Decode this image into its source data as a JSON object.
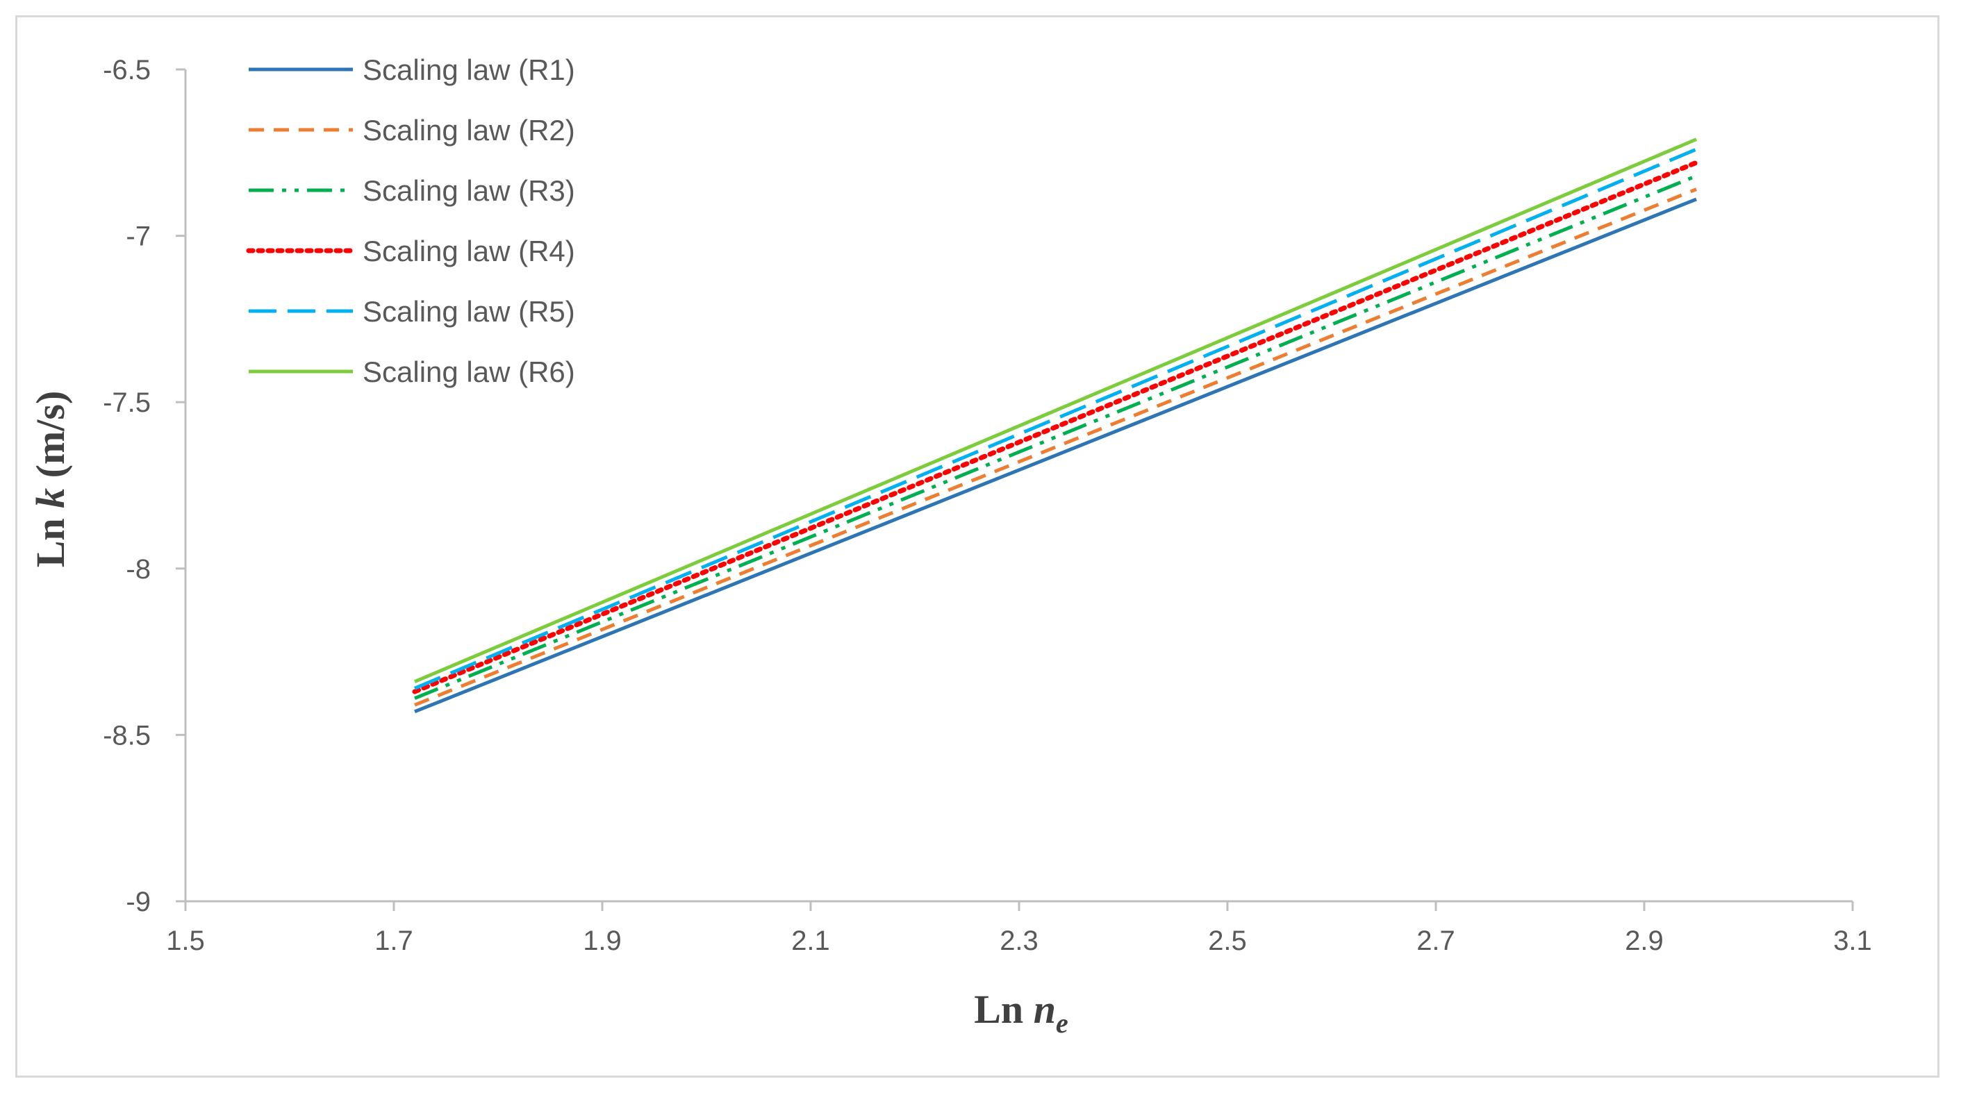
{
  "chart_data": {
    "type": "line",
    "xlabel": {
      "main": "Ln ",
      "var": "n",
      "sub": "e"
    },
    "ylabel": {
      "main": "Ln ",
      "var": "k",
      "unit": " (m/s)"
    },
    "xlim": [
      1.5,
      3.1
    ],
    "ylim": [
      -9,
      -6.5
    ],
    "x_ticks": [
      "1.5",
      "1.7",
      "1.9",
      "2.1",
      "2.3",
      "2.5",
      "2.7",
      "2.9",
      "3.1"
    ],
    "y_ticks": [
      "-6.5",
      "-7",
      "-7.5",
      "-8",
      "-8.5",
      "-9"
    ],
    "grid": false,
    "legend_position": "top-left",
    "series": [
      {
        "name": "Scaling law (R1)",
        "color": "#2e75b6",
        "style": "solid",
        "x": [
          1.72,
          2.95
        ],
        "y": [
          -8.43,
          -6.89
        ]
      },
      {
        "name": "Scaling law (R2)",
        "color": "#ed7d31",
        "style": "dash",
        "x": [
          1.72,
          2.95
        ],
        "y": [
          -8.41,
          -6.86
        ]
      },
      {
        "name": "Scaling law (R3)",
        "color": "#00b050",
        "style": "dashdotdot",
        "x": [
          1.72,
          2.95
        ],
        "y": [
          -8.39,
          -6.82
        ]
      },
      {
        "name": "Scaling law (R4)",
        "color": "#ff0000",
        "style": "dot",
        "x": [
          1.72,
          2.95
        ],
        "y": [
          -8.37,
          -6.78
        ]
      },
      {
        "name": "Scaling law (R5)",
        "color": "#00b0f0",
        "style": "longdash",
        "x": [
          1.72,
          2.95
        ],
        "y": [
          -8.36,
          -6.74
        ]
      },
      {
        "name": "Scaling law (R6)",
        "color": "#7ccc3c",
        "style": "solid",
        "x": [
          1.72,
          2.95
        ],
        "y": [
          -8.34,
          -6.71
        ]
      }
    ]
  }
}
